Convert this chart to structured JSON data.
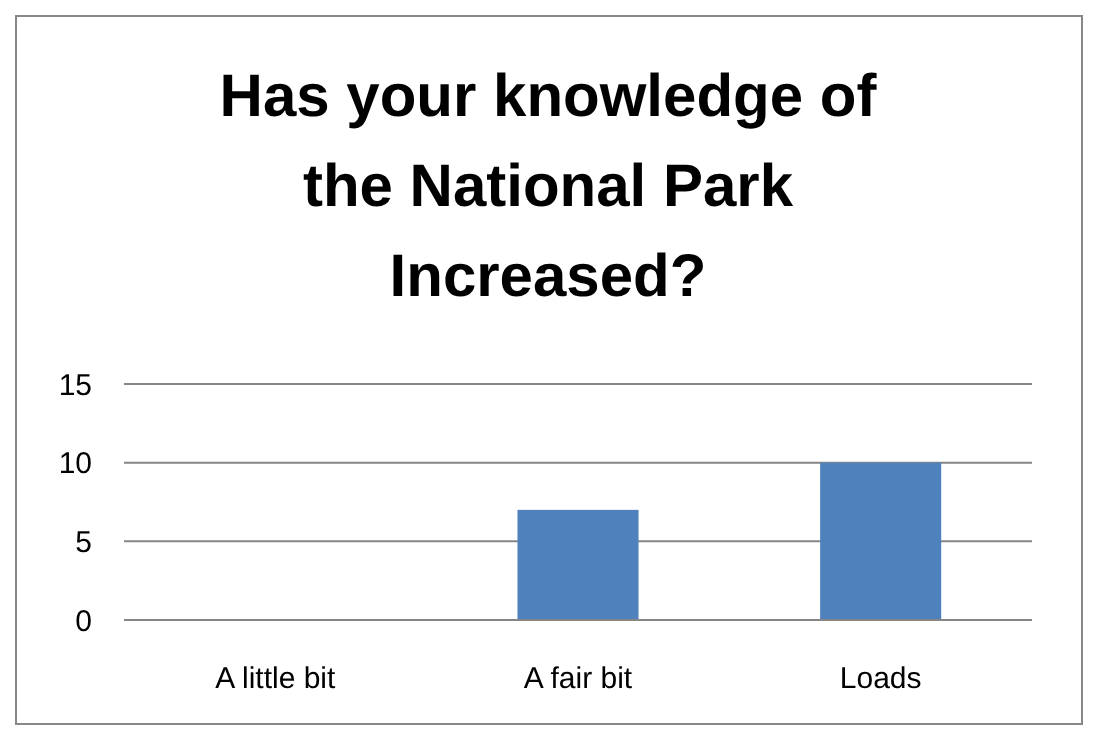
{
  "chart_data": {
    "type": "bar",
    "title": "Has your knowledge of the National Park Increased?",
    "categories": [
      "A little bit",
      "A fair bit",
      "Loads"
    ],
    "values": [
      0,
      7,
      10
    ],
    "color": "#4f81bd",
    "ylim": [
      0,
      15
    ],
    "yticks": [
      0,
      5,
      10,
      15
    ],
    "grid": "y"
  }
}
